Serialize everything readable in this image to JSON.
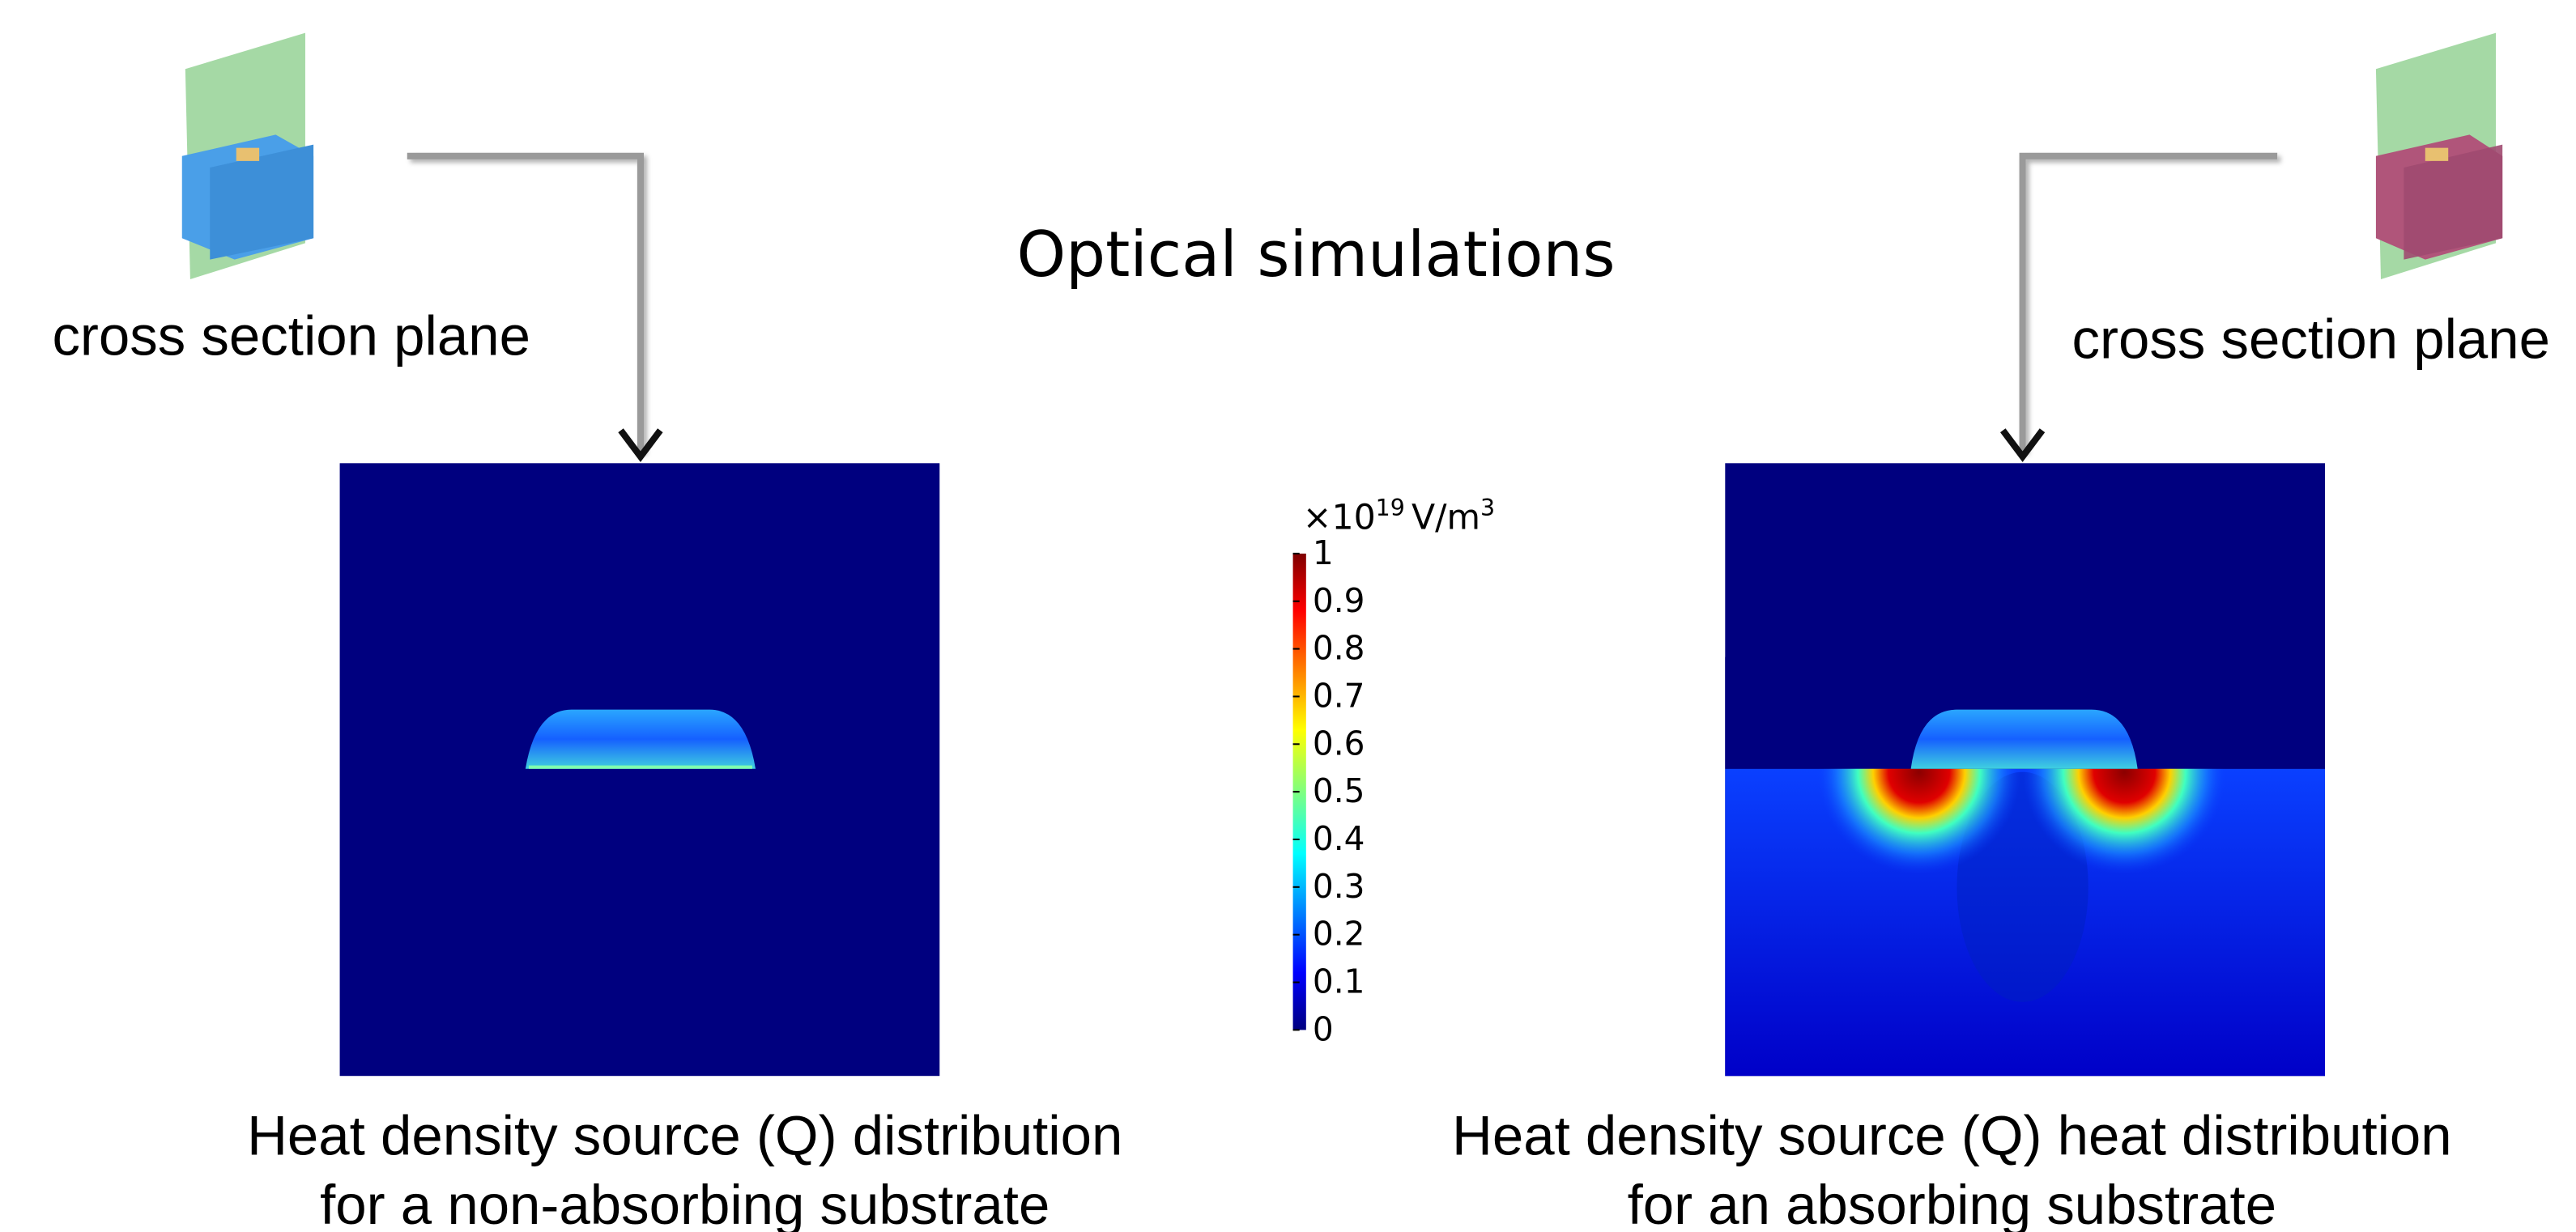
{
  "header": {
    "title": "Optical simulations"
  },
  "left": {
    "plane_label": "cross section plane",
    "caption": [
      "Heat density source (Q) distribution",
      "for a non-absorbing substrate"
    ]
  },
  "right": {
    "plane_label": "cross section plane",
    "caption": [
      "Heat density source (Q) heat distribution",
      "for an absorbing substrate"
    ]
  },
  "colorbar": {
    "multiplier": "×10",
    "exponent": "19",
    "unit": "V/m",
    "unit_exponent": "3",
    "lim": [
      0,
      1
    ],
    "ticks": [
      0,
      0.1,
      0.2,
      0.3,
      0.4,
      0.5,
      0.6,
      0.7,
      0.8,
      0.9,
      1
    ]
  }
}
